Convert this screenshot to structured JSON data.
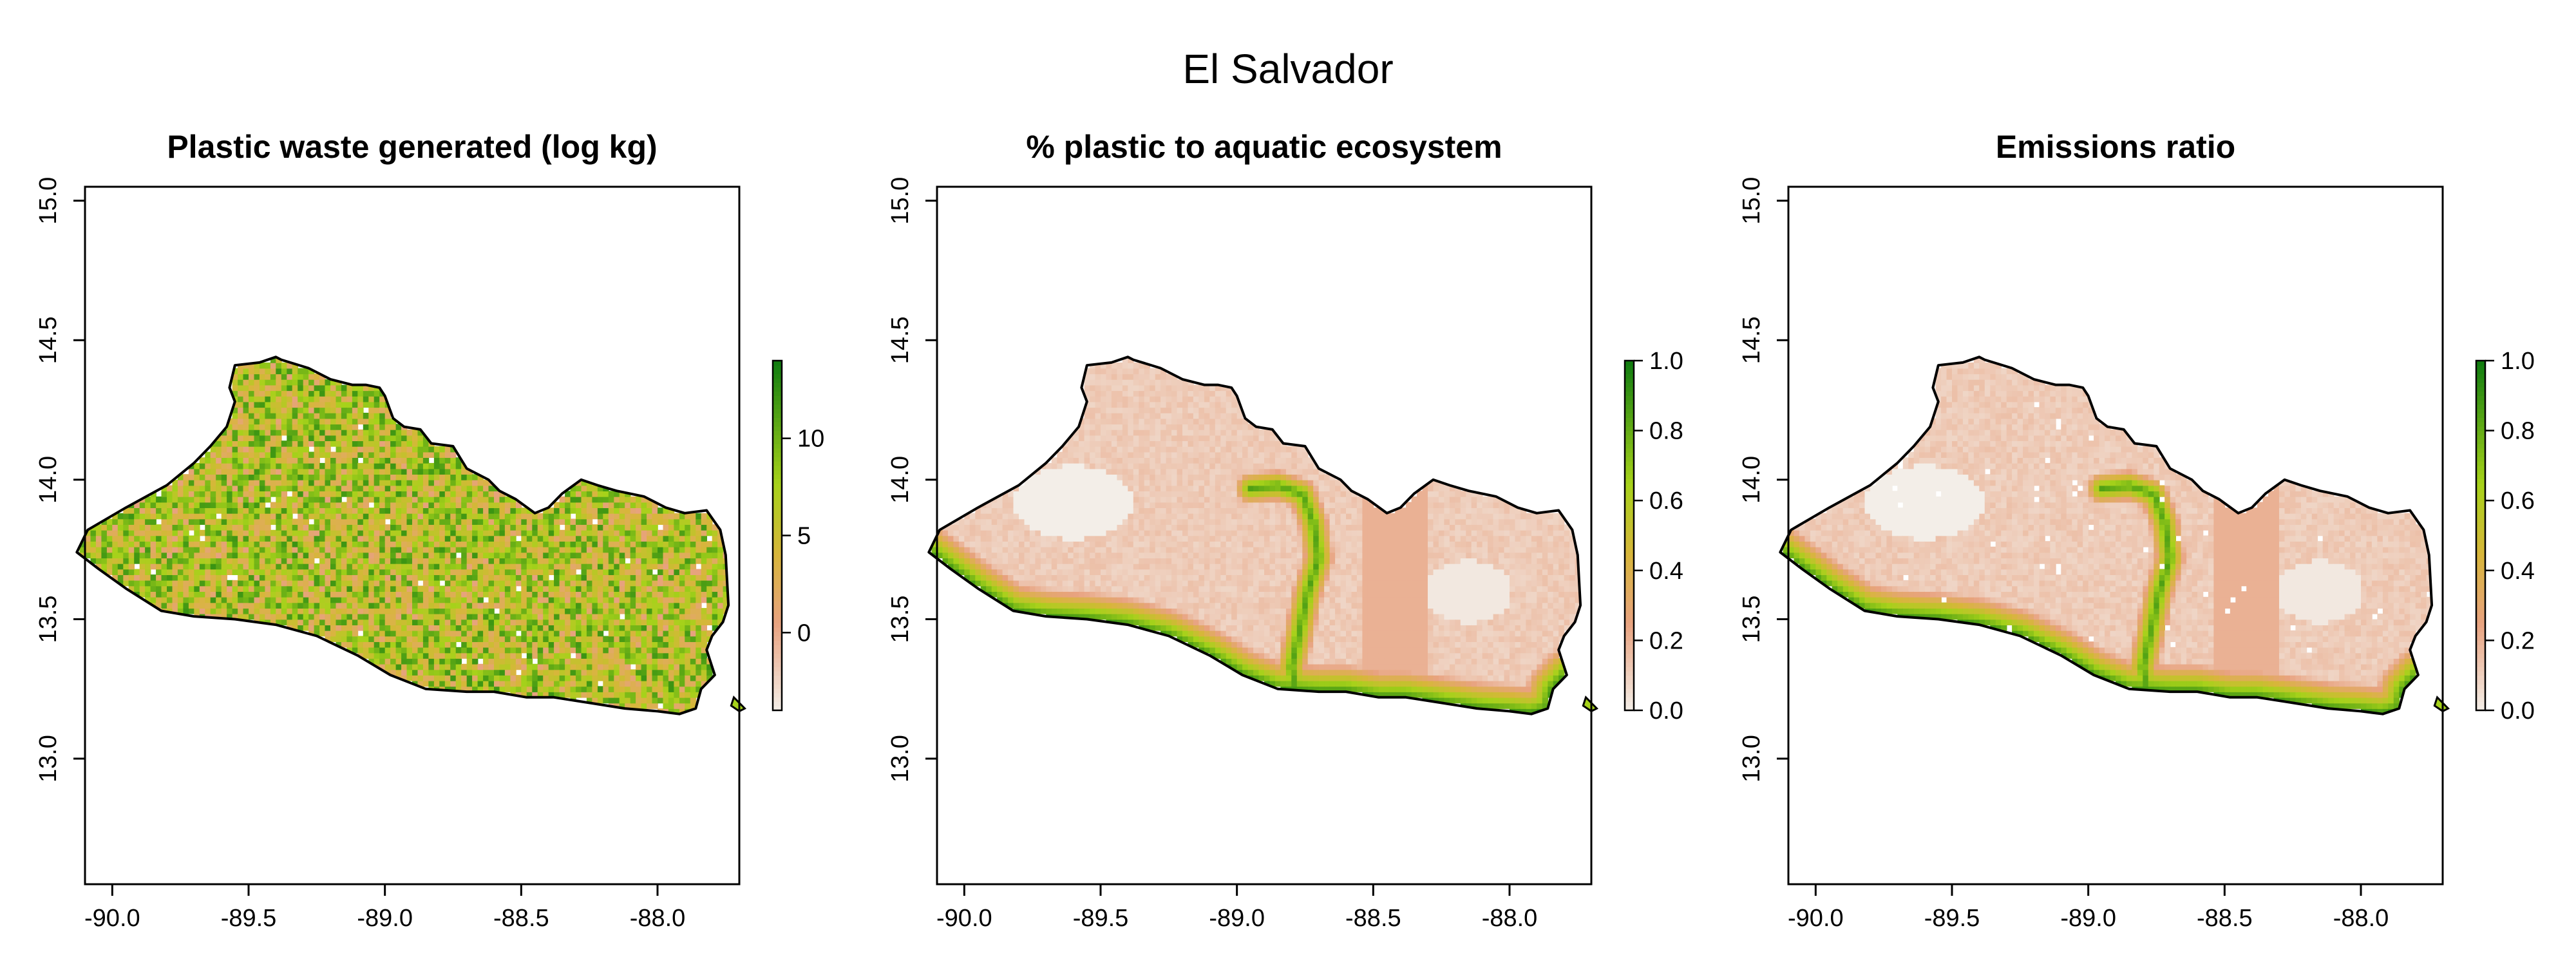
{
  "title": "El Salvador",
  "colors": {
    "map_outline": "#000000",
    "ramp_low": "#f3eee8",
    "ramp_mid_low": "#e8a27f",
    "ramp_mid": "#d7b63a",
    "ramp_mid_high": "#a6d21a",
    "ramp_high": "#0f7b10",
    "nodata": "#ffffff"
  },
  "chart_data": [
    {
      "type": "heatmap",
      "title": "Plastic waste generated (log kg)",
      "xlim": [
        -90.1,
        -87.7
      ],
      "ylim": [
        12.55,
        15.05
      ],
      "x_ticks": [
        -90.0,
        -89.5,
        -89.0,
        -88.5,
        -88.0
      ],
      "x_tick_labels": [
        "-90.0",
        "-89.5",
        "-89.0",
        "-88.5",
        "-88.0"
      ],
      "y_ticks": [
        13.0,
        13.5,
        14.0,
        14.5,
        15.0
      ],
      "y_tick_labels": [
        "13.0",
        "13.5",
        "14.0",
        "14.5",
        "15.0"
      ],
      "xlabel": "",
      "ylabel": "",
      "legend": {
        "range": [
          -4,
          14
        ],
        "ticks": [
          0,
          5,
          10
        ],
        "tick_labels": [
          "0",
          "5",
          "10"
        ]
      },
      "pattern": "speckled"
    },
    {
      "type": "heatmap",
      "title": "% plastic to aquatic ecosystem",
      "xlim": [
        -90.1,
        -87.7
      ],
      "ylim": [
        12.55,
        15.05
      ],
      "x_ticks": [
        -90.0,
        -89.5,
        -89.0,
        -88.5,
        -88.0
      ],
      "x_tick_labels": [
        "-90.0",
        "-89.5",
        "-89.0",
        "-88.5",
        "-88.0"
      ],
      "y_ticks": [
        13.0,
        13.5,
        14.0,
        14.5,
        15.0
      ],
      "y_tick_labels": [
        "13.0",
        "13.5",
        "14.0",
        "14.5",
        "15.0"
      ],
      "xlabel": "",
      "ylabel": "",
      "legend": {
        "range": [
          0,
          1
        ],
        "ticks": [
          0.0,
          0.2,
          0.4,
          0.6,
          0.8,
          1.0
        ],
        "tick_labels": [
          "0.0",
          "0.2",
          "0.4",
          "0.6",
          "0.8",
          "1.0"
        ]
      },
      "pattern": "coastal-river-gradient"
    },
    {
      "type": "heatmap",
      "title": "Emissions ratio",
      "xlim": [
        -90.1,
        -87.7
      ],
      "ylim": [
        12.55,
        15.05
      ],
      "x_ticks": [
        -90.0,
        -89.5,
        -89.0,
        -88.5,
        -88.0
      ],
      "x_tick_labels": [
        "-90.0",
        "-89.5",
        "-89.0",
        "-88.5",
        "-88.0"
      ],
      "y_ticks": [
        13.0,
        13.5,
        14.0,
        14.5,
        15.0
      ],
      "y_tick_labels": [
        "13.0",
        "13.5",
        "14.0",
        "14.5",
        "15.0"
      ],
      "xlabel": "",
      "ylabel": "",
      "legend": {
        "range": [
          0,
          1
        ],
        "ticks": [
          0.0,
          0.2,
          0.4,
          0.6,
          0.8,
          1.0
        ],
        "tick_labels": [
          "0.0",
          "0.2",
          "0.4",
          "0.6",
          "0.8",
          "1.0"
        ]
      },
      "pattern": "coastal-river-gradient"
    }
  ]
}
